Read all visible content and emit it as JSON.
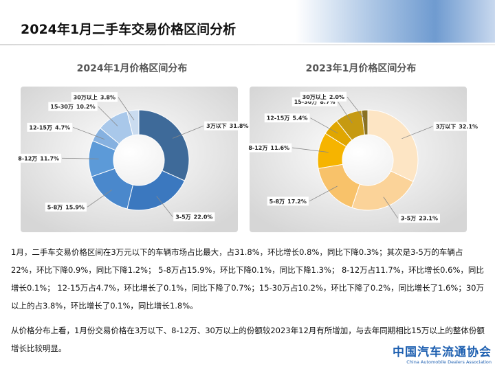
{
  "title": "2024年1月二手车交易价格区间分析",
  "paragraphs": [
    "1月，二手车交易价格区间在3万元以下的车辆市场占比最大，占31.8%，环比增长0.8%，同比下降0.3%；其次是3-5万的车辆占22%，环比下降0.9%，同比下降1.2%； 5-8万占15.9%，环比下降0.1%，同比下降1.3%； 8-12万占11.7%，环比增长0.6%，同比增长0.1%； 12-15万占4.7%，环比增长了0.1%，同比下降了0.7%；15-30万占10.2%，环比下降了0.2%，同比增长了1.6%；30万以上的占3.8%，环比增长了0.1%，同比增长1.8%。",
    "从价格分布上看，1月份交易价格在3万以下、8-12万、30万以上的份额较2023年12月有所增加，与去年同期相比15万以上的整体份额增长比较明显。"
  ],
  "logo": {
    "name": "中国汽车流通协会",
    "english": "China Automobile Dealers Association"
  },
  "chart_data": [
    {
      "type": "pie",
      "title": "2024年1月价格区间分布",
      "categories": [
        "3万以下",
        "3-5万",
        "5-8万",
        "8-12万",
        "12-15万",
        "15-30万",
        "30万以上"
      ],
      "values": [
        31.8,
        22.0,
        15.9,
        11.7,
        4.7,
        10.2,
        3.8
      ],
      "value_labels": [
        "31.8%",
        "22.0%",
        "15.9%",
        "11.7%",
        "4.7%",
        "10.2%",
        "3.8%"
      ],
      "colors": [
        "#3e6a99",
        "#3b78bf",
        "#4a88cc",
        "#5c9ad8",
        "#86b1e0",
        "#a9c8ea",
        "#cadcf0"
      ]
    },
    {
      "type": "pie",
      "title": "2023年1月价格区间分布",
      "categories": [
        "3万以下",
        "3-5万",
        "5-8万",
        "8-12万",
        "12-15万",
        "15-30万",
        "30万以上"
      ],
      "values": [
        32.1,
        23.1,
        17.2,
        11.6,
        5.4,
        8.7,
        2.0
      ],
      "value_labels": [
        "32.1%",
        "23.1%",
        "17.2%",
        "11.6%",
        "5.4%",
        "8.7%",
        "2.0%"
      ],
      "colors": [
        "#fde5c4",
        "#fbd399",
        "#f8c26a",
        "#f6b400",
        "#e0a600",
        "#c69a12",
        "#8a7122"
      ]
    }
  ]
}
